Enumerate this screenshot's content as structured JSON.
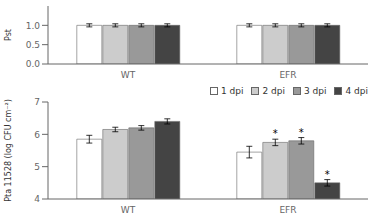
{
  "chart_data": [
    {
      "type": "bar",
      "ylabel": "Pst",
      "categories": [
        "WT",
        "EFR"
      ],
      "series": [
        {
          "name": "1 dpi",
          "color": "#ffffff",
          "values": [
            1.0,
            1.0
          ],
          "errors": [
            0.04,
            0.04
          ]
        },
        {
          "name": "2 dpi",
          "color": "#cccccc",
          "values": [
            1.0,
            1.0
          ],
          "errors": [
            0.04,
            0.04
          ]
        },
        {
          "name": "3 dpi",
          "color": "#999999",
          "values": [
            1.0,
            1.0
          ],
          "errors": [
            0.04,
            0.04
          ]
        },
        {
          "name": "4 dpi",
          "color": "#444444",
          "values": [
            1.0,
            1.0
          ],
          "errors": [
            0.04,
            0.04
          ]
        }
      ],
      "ylim": [
        0,
        1.5
      ],
      "yticks": [
        {
          "value": 0,
          "label": "0.0"
        },
        0.5,
        {
          "value": 1.0,
          "label": "1.0"
        }
      ]
    },
    {
      "type": "bar",
      "ylabel": "Pta 11528 (log CFU cm⁻²)",
      "categories": [
        "WT",
        "EFR"
      ],
      "series": [
        {
          "name": "1 dpi",
          "color": "#ffffff",
          "values": [
            5.85,
            5.45
          ],
          "errors": [
            0.12,
            0.18
          ]
        },
        {
          "name": "2 dpi",
          "color": "#cccccc",
          "values": [
            6.15,
            5.75
          ],
          "errors": [
            0.07,
            0.1
          ]
        },
        {
          "name": "3 dpi",
          "color": "#999999",
          "values": [
            6.2,
            5.8
          ],
          "errors": [
            0.07,
            0.1
          ]
        },
        {
          "name": "4 dpi",
          "color": "#444444",
          "values": [
            6.4,
            4.5
          ],
          "errors": [
            0.08,
            0.1
          ]
        }
      ],
      "annotations": [
        {
          "category": "EFR",
          "series": "2 dpi",
          "text": "*"
        },
        {
          "category": "EFR",
          "series": "3 dpi",
          "text": "*"
        },
        {
          "category": "EFR",
          "series": "4 dpi",
          "text": "*"
        }
      ],
      "ylim": [
        4.0,
        7.0
      ],
      "yticks": [
        4,
        5,
        6,
        7
      ],
      "legend": "upper right"
    }
  ]
}
